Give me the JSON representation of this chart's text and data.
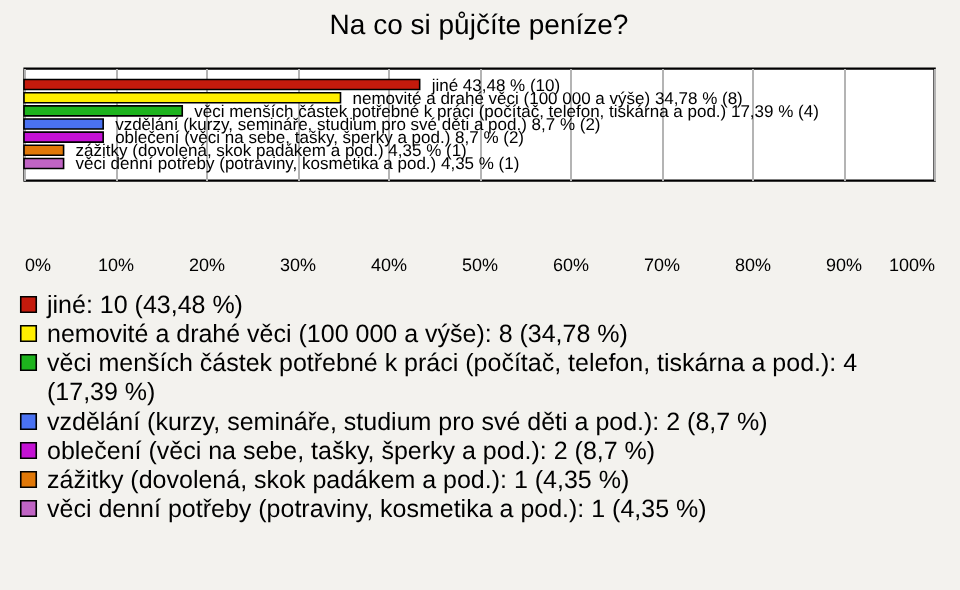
{
  "chart_data": {
    "type": "bar",
    "orientation": "horizontal",
    "title": "Na co si půjčíte peníze?",
    "categories": [
      null,
      null,
      null,
      null,
      null,
      null,
      null
    ],
    "series": [
      {
        "name": "jiné: 10 (43,48 %)",
        "color": "#c41a0c",
        "values": [
          43.48,
          null,
          null,
          null,
          null,
          null,
          null
        ]
      },
      {
        "name": "nemovité a drahé věci (100 000 a výše): 8 (34,78 %)",
        "color": "#ffee00",
        "values": [
          null,
          34.78,
          null,
          null,
          null,
          null,
          null
        ]
      },
      {
        "name": "věci menších částek potřebné k práci (počítač, telefon, tiskárna a pod.): 4 (17,39 %)",
        "color": "#1db31d",
        "values": [
          null,
          null,
          17.39,
          null,
          null,
          null,
          null
        ]
      },
      {
        "name": "vzdělání (kurzy, semináře, studium pro své děti a pod.): 2 (8,7 %)",
        "color": "#4a72f2",
        "values": [
          null,
          null,
          null,
          8.7,
          null,
          null,
          null
        ]
      },
      {
        "name": "oblečení (věci na sebe, tašky, šperky a pod.): 2 (8,7 %)",
        "color": "#c412d4",
        "values": [
          null,
          null,
          null,
          null,
          8.7,
          null,
          null
        ]
      },
      {
        "name": "zážitky (dovolená, skok padákem a pod.): 1 (4,35 %)",
        "color": "#e07808",
        "values": [
          null,
          null,
          null,
          null,
          null,
          4.35,
          null
        ]
      },
      {
        "name": "věci denní potřeby (potraviny, kosmetika a pod.): 1 (4,35 %)",
        "color": "#c064c4",
        "values": [
          null,
          null,
          null,
          null,
          null,
          null,
          4.35
        ]
      }
    ],
    "value_labels": [
      "jiné 43,48 % (10)",
      "nemovité a drahé věci (100 000 a výše) 34,78 % (8)",
      "věci menších částek potřebné k práci (počítač, telefon, tiskárna a pod.) 17,39 % (4)",
      "vzdělání (kurzy, semináře, studium pro své děti a pod.) 8,7 % (2)",
      "oblečení (věci na sebe, tašky, šperky a pod.) 8,7 % (2)",
      "zážitky (dovolená, skok padákem a pod.) 4,35 % (1)",
      "věci denní potřeby (potraviny, kosmetika a pod.) 4,35 % (1)"
    ],
    "legend": "bottom",
    "stacked": true,
    "xlim": [
      0,
      100
    ],
    "xticks": [
      {
        "value": 0,
        "label": "0%"
      },
      {
        "value": 10,
        "label": "10%"
      },
      {
        "value": 20,
        "label": "20%"
      },
      {
        "value": 30,
        "label": "30%"
      },
      {
        "value": 40,
        "label": "40%"
      },
      {
        "value": 50,
        "label": "50%"
      },
      {
        "value": 60,
        "label": "60%"
      },
      {
        "value": 70,
        "label": "70%"
      },
      {
        "value": 80,
        "label": "80%"
      },
      {
        "value": 90,
        "label": "90%"
      },
      {
        "value": 100,
        "label": "100%"
      }
    ],
    "grid": "x"
  }
}
